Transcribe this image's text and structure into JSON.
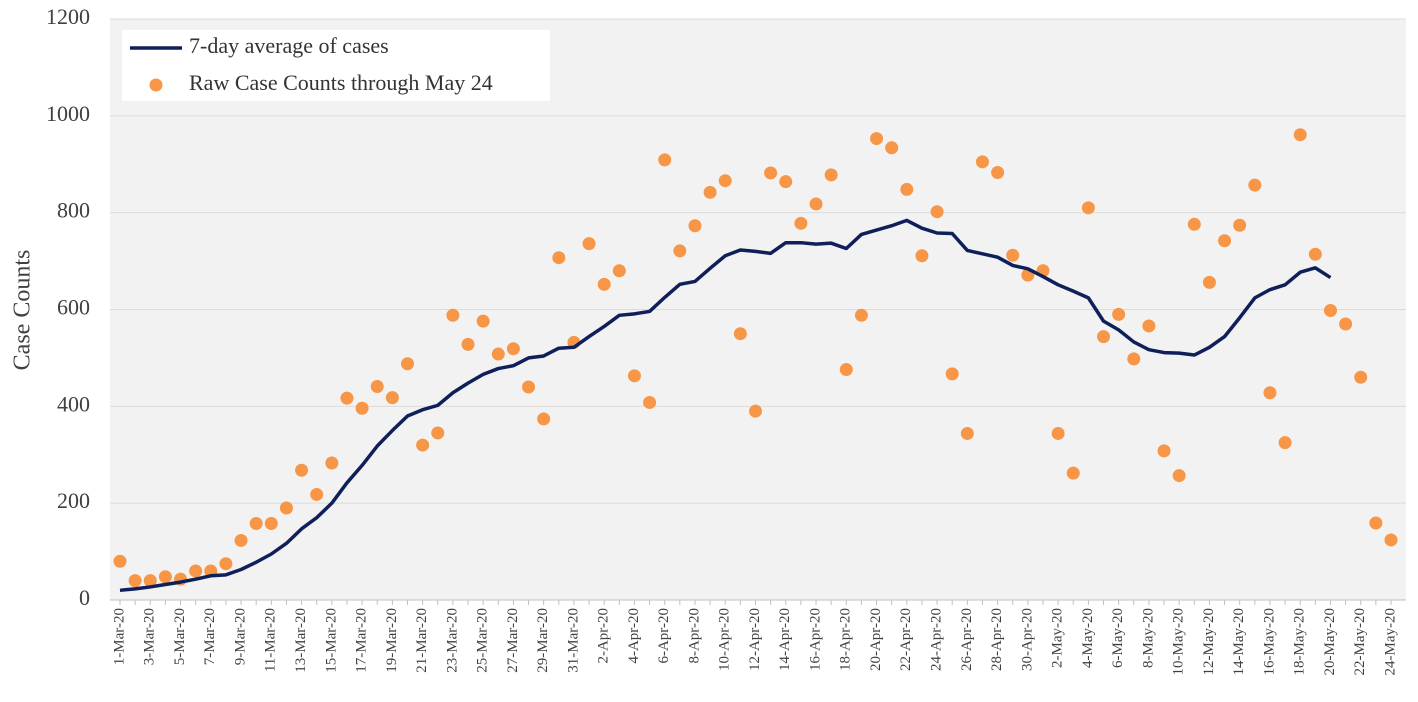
{
  "chart_data": {
    "type": "line",
    "y_label": "Case Counts",
    "legend": "upper left",
    "grid": true,
    "ylim": [
      0,
      1200
    ],
    "yticks": [
      0,
      200,
      400,
      600,
      800,
      1000,
      1200
    ],
    "categories": [
      "1-Mar-20",
      null,
      "3-Mar-20",
      null,
      "5-Mar-20",
      null,
      "7-Mar-20",
      null,
      "9-Mar-20",
      null,
      "11-Mar-20",
      null,
      "13-Mar-20",
      null,
      "15-Mar-20",
      null,
      "17-Mar-20",
      null,
      "19-Mar-20",
      null,
      "21-Mar-20",
      null,
      "23-Mar-20",
      null,
      "25-Mar-20",
      null,
      "27-Mar-20",
      null,
      "29-Mar-20",
      null,
      "31-Mar-20",
      null,
      "2-Apr-20",
      null,
      "4-Apr-20",
      null,
      "6-Apr-20",
      null,
      "8-Apr-20",
      null,
      "10-Apr-20",
      null,
      "12-Apr-20",
      null,
      "14-Apr-20",
      null,
      "16-Apr-20",
      null,
      "18-Apr-20",
      null,
      "20-Apr-20",
      null,
      "22-Apr-20",
      null,
      "24-Apr-20",
      null,
      "26-Apr-20",
      null,
      "28-Apr-20",
      null,
      "30-Apr-20",
      null,
      "2-May-20",
      null,
      "4-May-20",
      null,
      "6-May-20",
      null,
      "8-May-20",
      null,
      "10-May-20",
      null,
      "12-May-20",
      null,
      "14-May-20",
      null,
      "16-May-20",
      null,
      "18-May-20",
      null,
      "20-May-20",
      null,
      "22-May-20",
      null,
      "24-May-20"
    ],
    "series": [
      {
        "name": "7-day average of cases",
        "type": "line",
        "color": "#0f1f5a",
        "values": [
          20,
          23,
          27,
          32,
          37,
          43,
          50,
          52,
          63,
          78,
          95,
          117,
          147,
          170,
          200,
          242,
          278,
          318,
          350,
          380,
          393,
          402,
          428,
          448,
          466,
          478,
          484,
          500,
          504,
          520,
          522,
          544,
          565,
          588,
          591,
          596,
          625,
          652,
          658,
          685,
          711,
          723,
          720,
          716,
          738,
          738,
          735,
          737,
          726,
          755,
          764,
          773,
          784,
          768,
          758,
          757,
          722,
          715,
          708,
          691,
          684,
          668,
          651,
          638,
          624,
          576,
          558,
          533,
          517,
          511,
          510,
          506,
          522,
          544,
          583,
          624,
          641,
          651,
          677,
          686,
          666,
          null,
          null,
          null,
          null
        ]
      },
      {
        "name": "Raw Case Counts through May 24",
        "type": "scatter",
        "color": "#f79646",
        "values": [
          80,
          40,
          40,
          48,
          43,
          60,
          60,
          75,
          123,
          158,
          158,
          190,
          268,
          218,
          283,
          417,
          396,
          441,
          418,
          488,
          320,
          345,
          588,
          528,
          576,
          508,
          519,
          440,
          374,
          707,
          532,
          736,
          652,
          680,
          463,
          408,
          909,
          721,
          773,
          842,
          866,
          550,
          390,
          882,
          864,
          778,
          818,
          878,
          476,
          588,
          953,
          934,
          848,
          711,
          802,
          467,
          344,
          905,
          883,
          712,
          671,
          680,
          344,
          262,
          810,
          544,
          590,
          498,
          566,
          308,
          257,
          776,
          656,
          742,
          774,
          857,
          428,
          325,
          961,
          714,
          598,
          570,
          460,
          159,
          124
        ]
      }
    ]
  }
}
